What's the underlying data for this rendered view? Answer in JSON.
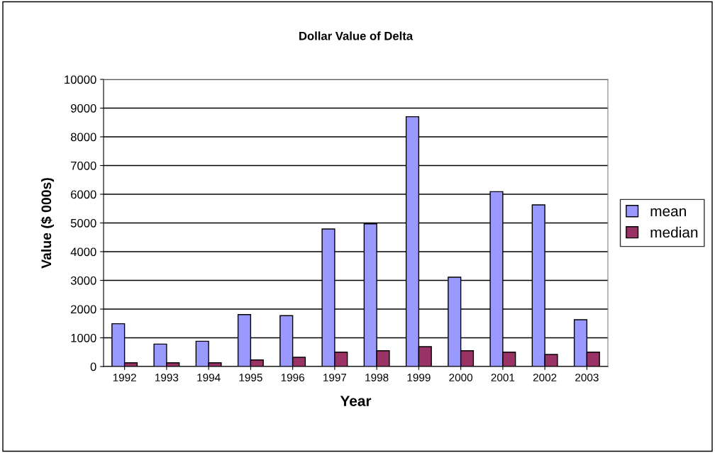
{
  "chart_data": {
    "type": "bar",
    "title": "Dollar Value of Delta",
    "xlabel": "Year",
    "ylabel": "Value ($ 000s)",
    "categories": [
      "1992",
      "1993",
      "1994",
      "1995",
      "1996",
      "1997",
      "1998",
      "1999",
      "2000",
      "2001",
      "2002",
      "2003"
    ],
    "series": [
      {
        "name": "mean",
        "color": "#9999ff",
        "values": [
          1490,
          780,
          880,
          1810,
          1770,
          4790,
          4970,
          8700,
          3110,
          6090,
          5630,
          1630
        ]
      },
      {
        "name": "median",
        "color": "#993366",
        "values": [
          130,
          130,
          130,
          230,
          320,
          500,
          550,
          690,
          550,
          500,
          420,
          500
        ]
      }
    ],
    "ylim": [
      0,
      10000
    ],
    "yticks": [
      0,
      1000,
      2000,
      3000,
      4000,
      5000,
      6000,
      7000,
      8000,
      9000,
      10000
    ],
    "grid": "y",
    "legend": "right"
  }
}
